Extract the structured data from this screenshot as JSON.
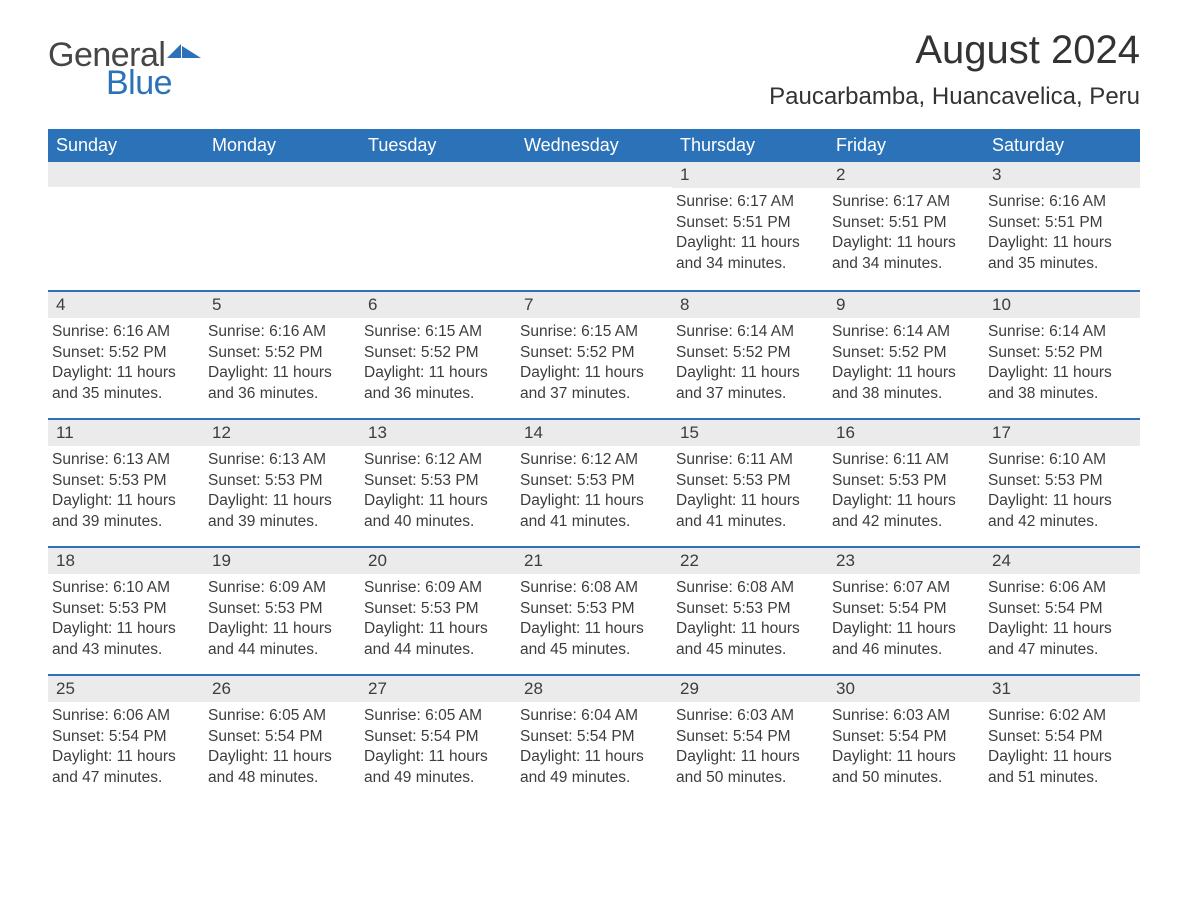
{
  "brand": {
    "word1": "General",
    "word2": "Blue",
    "accent_color": "#2c72b8"
  },
  "title": "August 2024",
  "location": "Paucarbamba, Huancavelica, Peru",
  "calendar": {
    "type": "table",
    "background_color": "#ffffff",
    "header_bg": "#2c72b8",
    "header_fg": "#ffffff",
    "daynum_bg": "#ebebeb",
    "row_border_color": "#2c72b8",
    "text_color": "#3d3d3d",
    "title_fontsize": 40,
    "location_fontsize": 24,
    "header_fontsize": 18,
    "body_fontsize": 15.5,
    "columns": [
      "Sunday",
      "Monday",
      "Tuesday",
      "Wednesday",
      "Thursday",
      "Friday",
      "Saturday"
    ],
    "weeks": [
      [
        null,
        null,
        null,
        null,
        {
          "day": "1",
          "sunrise": "6:17 AM",
          "sunset": "5:51 PM",
          "daylight": "11 hours and 34 minutes."
        },
        {
          "day": "2",
          "sunrise": "6:17 AM",
          "sunset": "5:51 PM",
          "daylight": "11 hours and 34 minutes."
        },
        {
          "day": "3",
          "sunrise": "6:16 AM",
          "sunset": "5:51 PM",
          "daylight": "11 hours and 35 minutes."
        }
      ],
      [
        {
          "day": "4",
          "sunrise": "6:16 AM",
          "sunset": "5:52 PM",
          "daylight": "11 hours and 35 minutes."
        },
        {
          "day": "5",
          "sunrise": "6:16 AM",
          "sunset": "5:52 PM",
          "daylight": "11 hours and 36 minutes."
        },
        {
          "day": "6",
          "sunrise": "6:15 AM",
          "sunset": "5:52 PM",
          "daylight": "11 hours and 36 minutes."
        },
        {
          "day": "7",
          "sunrise": "6:15 AM",
          "sunset": "5:52 PM",
          "daylight": "11 hours and 37 minutes."
        },
        {
          "day": "8",
          "sunrise": "6:14 AM",
          "sunset": "5:52 PM",
          "daylight": "11 hours and 37 minutes."
        },
        {
          "day": "9",
          "sunrise": "6:14 AM",
          "sunset": "5:52 PM",
          "daylight": "11 hours and 38 minutes."
        },
        {
          "day": "10",
          "sunrise": "6:14 AM",
          "sunset": "5:52 PM",
          "daylight": "11 hours and 38 minutes."
        }
      ],
      [
        {
          "day": "11",
          "sunrise": "6:13 AM",
          "sunset": "5:53 PM",
          "daylight": "11 hours and 39 minutes."
        },
        {
          "day": "12",
          "sunrise": "6:13 AM",
          "sunset": "5:53 PM",
          "daylight": "11 hours and 39 minutes."
        },
        {
          "day": "13",
          "sunrise": "6:12 AM",
          "sunset": "5:53 PM",
          "daylight": "11 hours and 40 minutes."
        },
        {
          "day": "14",
          "sunrise": "6:12 AM",
          "sunset": "5:53 PM",
          "daylight": "11 hours and 41 minutes."
        },
        {
          "day": "15",
          "sunrise": "6:11 AM",
          "sunset": "5:53 PM",
          "daylight": "11 hours and 41 minutes."
        },
        {
          "day": "16",
          "sunrise": "6:11 AM",
          "sunset": "5:53 PM",
          "daylight": "11 hours and 42 minutes."
        },
        {
          "day": "17",
          "sunrise": "6:10 AM",
          "sunset": "5:53 PM",
          "daylight": "11 hours and 42 minutes."
        }
      ],
      [
        {
          "day": "18",
          "sunrise": "6:10 AM",
          "sunset": "5:53 PM",
          "daylight": "11 hours and 43 minutes."
        },
        {
          "day": "19",
          "sunrise": "6:09 AM",
          "sunset": "5:53 PM",
          "daylight": "11 hours and 44 minutes."
        },
        {
          "day": "20",
          "sunrise": "6:09 AM",
          "sunset": "5:53 PM",
          "daylight": "11 hours and 44 minutes."
        },
        {
          "day": "21",
          "sunrise": "6:08 AM",
          "sunset": "5:53 PM",
          "daylight": "11 hours and 45 minutes."
        },
        {
          "day": "22",
          "sunrise": "6:08 AM",
          "sunset": "5:53 PM",
          "daylight": "11 hours and 45 minutes."
        },
        {
          "day": "23",
          "sunrise": "6:07 AM",
          "sunset": "5:54 PM",
          "daylight": "11 hours and 46 minutes."
        },
        {
          "day": "24",
          "sunrise": "6:06 AM",
          "sunset": "5:54 PM",
          "daylight": "11 hours and 47 minutes."
        }
      ],
      [
        {
          "day": "25",
          "sunrise": "6:06 AM",
          "sunset": "5:54 PM",
          "daylight": "11 hours and 47 minutes."
        },
        {
          "day": "26",
          "sunrise": "6:05 AM",
          "sunset": "5:54 PM",
          "daylight": "11 hours and 48 minutes."
        },
        {
          "day": "27",
          "sunrise": "6:05 AM",
          "sunset": "5:54 PM",
          "daylight": "11 hours and 49 minutes."
        },
        {
          "day": "28",
          "sunrise": "6:04 AM",
          "sunset": "5:54 PM",
          "daylight": "11 hours and 49 minutes."
        },
        {
          "day": "29",
          "sunrise": "6:03 AM",
          "sunset": "5:54 PM",
          "daylight": "11 hours and 50 minutes."
        },
        {
          "day": "30",
          "sunrise": "6:03 AM",
          "sunset": "5:54 PM",
          "daylight": "11 hours and 50 minutes."
        },
        {
          "day": "31",
          "sunrise": "6:02 AM",
          "sunset": "5:54 PM",
          "daylight": "11 hours and 51 minutes."
        }
      ]
    ],
    "labels": {
      "sunrise": "Sunrise: ",
      "sunset": "Sunset: ",
      "daylight": "Daylight: "
    }
  }
}
